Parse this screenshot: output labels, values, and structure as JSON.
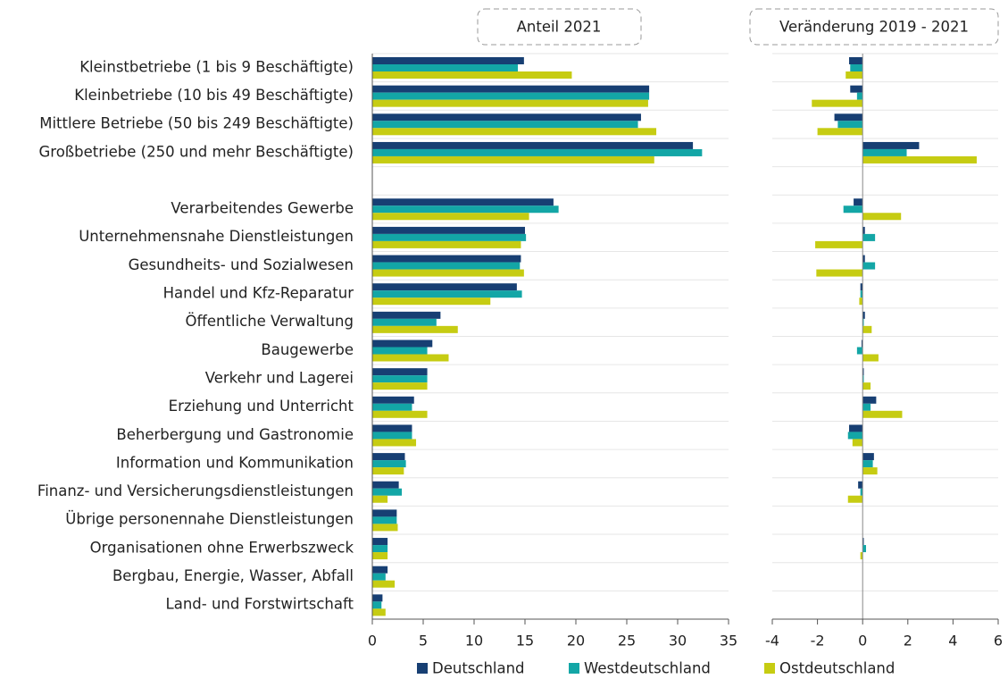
{
  "chart_data": [
    {
      "type": "bar",
      "orientation": "horizontal",
      "title": "Anteil 2021",
      "categories": [
        "Kleinstbetriebe (1 bis 9 Beschäftigte)",
        "Kleinbetriebe (10 bis 49 Beschäftigte)",
        "Mittlere Betriebe (50 bis 249 Beschäftigte)",
        "Großbetriebe (250 und mehr Beschäftigte)",
        null,
        "Verarbeitendes Gewerbe",
        "Unternehmensnahe Dienstleistungen",
        "Gesundheits- und Sozialwesen",
        "Handel und Kfz-Reparatur",
        "Öffentliche Verwaltung",
        "Baugewerbe",
        "Verkehr und Lagerei",
        "Erziehung und Unterricht",
        "Beherbergung und Gastronomie",
        "Information und Kommunikation",
        "Finanz- und Versicherungsdienstleistungen",
        "Übrige personennahe Dienstleistungen",
        "Organisationen ohne Erwerbszweck",
        "Bergbau, Energie, Wasser, Abfall",
        "Land- und Forstwirtschaft"
      ],
      "series": [
        {
          "name": "Deutschland",
          "color": "#173f73",
          "values": [
            14.9,
            27.2,
            26.4,
            31.5,
            null,
            17.8,
            15.0,
            14.6,
            14.2,
            6.7,
            5.9,
            5.4,
            4.1,
            3.9,
            3.2,
            2.6,
            2.4,
            1.5,
            1.5,
            1.0
          ]
        },
        {
          "name": "Westdeutschland",
          "color": "#13a6a6",
          "values": [
            14.3,
            27.2,
            26.1,
            32.4,
            null,
            18.3,
            15.1,
            14.5,
            14.7,
            6.3,
            5.4,
            5.4,
            3.9,
            3.9,
            3.3,
            2.9,
            2.4,
            1.5,
            1.3,
            0.9
          ]
        },
        {
          "name": "Ostdeutschland",
          "color": "#c6cc12",
          "values": [
            19.6,
            27.1,
            27.9,
            27.7,
            null,
            15.4,
            14.6,
            14.9,
            11.6,
            8.4,
            7.5,
            5.4,
            5.4,
            4.3,
            3.1,
            1.5,
            2.5,
            1.5,
            2.2,
            1.3
          ]
        }
      ],
      "xlim": [
        0,
        35
      ],
      "xticks": [
        0,
        5,
        10,
        15,
        20,
        25,
        30,
        35
      ]
    },
    {
      "type": "bar",
      "orientation": "horizontal",
      "title": "Veränderung 2019 - 2021",
      "series": [
        {
          "values": [
            -0.6,
            -0.55,
            -1.25,
            2.5,
            null,
            -0.4,
            0.1,
            0.1,
            -0.1,
            0.1,
            -0.05,
            0.05,
            0.6,
            -0.6,
            0.5,
            -0.2,
            0,
            0.05,
            0,
            0
          ]
        },
        {
          "values": [
            -0.55,
            -0.25,
            -1.1,
            1.95,
            null,
            -0.85,
            0.55,
            0.55,
            -0.1,
            0.05,
            -0.25,
            0.05,
            0.35,
            -0.65,
            0.45,
            -0.1,
            0,
            0.15,
            0,
            0
          ]
        },
        {
          "values": [
            -0.75,
            -2.25,
            -2.0,
            5.05,
            null,
            1.7,
            -2.1,
            -2.05,
            -0.15,
            0.4,
            0.7,
            0.35,
            1.75,
            -0.45,
            0.65,
            -0.65,
            0,
            -0.1,
            0,
            0
          ]
        }
      ],
      "xlim": [
        -4,
        6
      ],
      "xticks": [
        -4,
        -2,
        0,
        2,
        4,
        6
      ]
    }
  ]
}
